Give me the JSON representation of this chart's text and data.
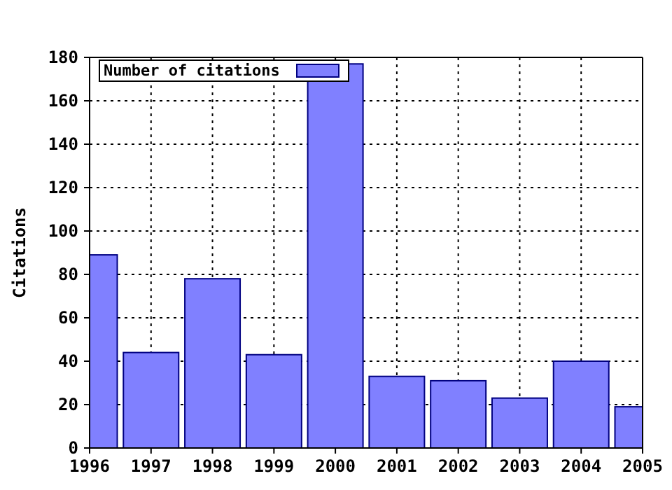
{
  "chart_data": {
    "type": "bar",
    "ylabel": "Citations",
    "x": [
      1996,
      1997,
      1998,
      1999,
      2000,
      2001,
      2002,
      2003,
      2004,
      2005
    ],
    "series": [
      {
        "name": "Number of citations",
        "color": "#8080ff",
        "values": [
          89,
          44,
          78,
          43,
          177,
          33,
          31,
          23,
          40,
          19
        ]
      }
    ],
    "xlim": [
      1996,
      2005
    ],
    "xticks": [
      1996,
      1997,
      1998,
      1999,
      2000,
      2001,
      2002,
      2003,
      2004,
      2005
    ],
    "ylim": [
      0,
      180
    ],
    "yticks": [
      0,
      20,
      40,
      60,
      80,
      100,
      120,
      140,
      160,
      180
    ],
    "grid": true,
    "legend": "top left"
  }
}
